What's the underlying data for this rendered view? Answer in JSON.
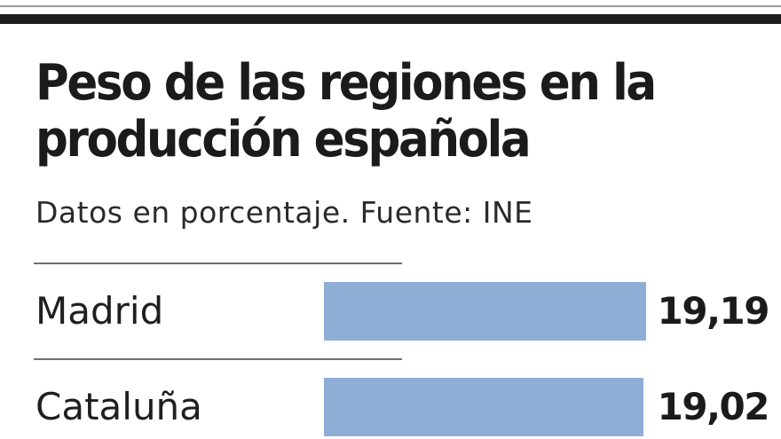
{
  "chart_data": {
    "type": "bar",
    "orientation": "horizontal",
    "title": "Peso de las regiones en la producción española",
    "subtitle": "Datos en porcentaje. Fuente: INE",
    "categories": [
      "Madrid",
      "Cataluña"
    ],
    "values": [
      19.19,
      19.02
    ],
    "value_labels": [
      "19,19",
      "19,02"
    ],
    "bar_color": "#8eaed6",
    "xlim": [
      0,
      19.19
    ],
    "grid": false,
    "legend": false
  }
}
